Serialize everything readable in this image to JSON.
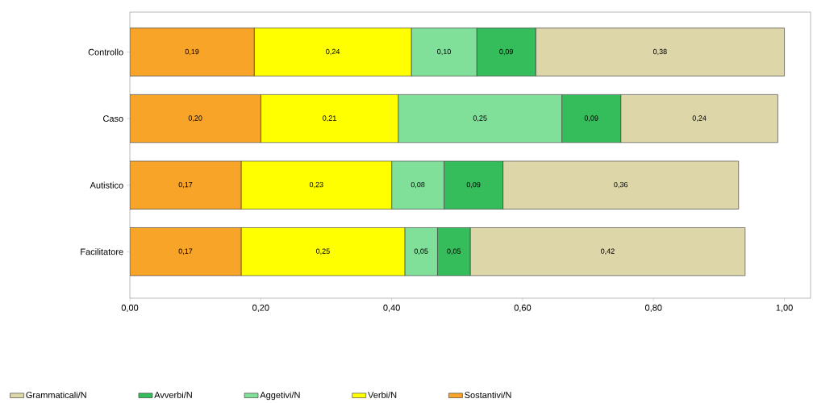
{
  "chart_data": {
    "type": "bar",
    "orientation": "horizontal",
    "stacked": true,
    "legend": "bottom",
    "categories": [
      "Controllo",
      "Caso",
      "Autistico",
      "Facilitatore"
    ],
    "series": [
      {
        "name": "Sostantivi/N",
        "color": "#f7a428",
        "values": [
          0.19,
          0.2,
          0.17,
          0.17
        ],
        "value_labels": [
          "0,19",
          "0,20",
          "0,17",
          "0,17"
        ]
      },
      {
        "name": "Verbi/N",
        "color": "#ffff00",
        "values": [
          0.24,
          0.21,
          0.23,
          0.25
        ],
        "value_labels": [
          "0,24",
          "0,21",
          "0,23",
          "0,25"
        ]
      },
      {
        "name": "Aggetivi/N",
        "color": "#80e09a",
        "values": [
          0.1,
          0.25,
          0.08,
          0.05
        ],
        "value_labels": [
          "0,10",
          "0,25",
          "0,08",
          "0,05"
        ]
      },
      {
        "name": "Avverbi/N",
        "color": "#36bd5b",
        "values": [
          0.09,
          0.09,
          0.09,
          0.05
        ],
        "value_labels": [
          "0,09",
          "0,09",
          "0,09",
          "0,05"
        ]
      },
      {
        "name": "Grammaticali/N",
        "color": "#dcd6a8",
        "values": [
          0.38,
          0.24,
          0.36,
          0.42
        ],
        "value_labels": [
          "0,38",
          "0,24",
          "0,36",
          "0,42"
        ]
      }
    ],
    "xlim": [
      0,
      1.04
    ],
    "xticks": [
      {
        "value": 0,
        "label": "0,00"
      },
      {
        "value": 0.2,
        "label": "0,20"
      },
      {
        "value": 0.4,
        "label": "0,40"
      },
      {
        "value": 0.6,
        "label": "0,60"
      },
      {
        "value": 0.8,
        "label": "0,80"
      },
      {
        "value": 1.0,
        "label": "1,00"
      }
    ]
  }
}
